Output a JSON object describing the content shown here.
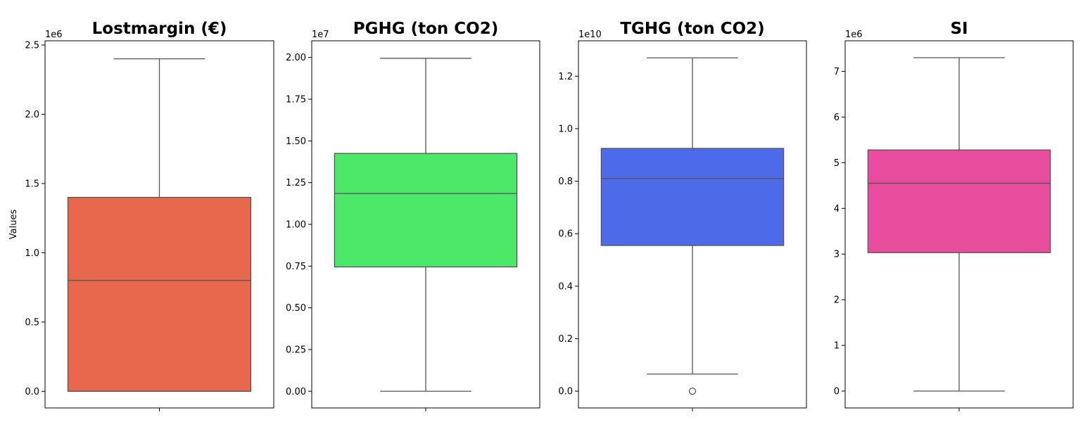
{
  "chart_data": [
    {
      "type": "box",
      "title": "Lostmargin (€)",
      "ylabel": "Values",
      "offset_label": "1e6",
      "color": "#e8684d",
      "ylim": [
        -0.12,
        2.53
      ],
      "ticks": [
        0.0,
        0.5,
        1.0,
        1.5,
        2.0,
        2.5
      ],
      "tick_labels": [
        "0.0",
        "0.5",
        "1.0",
        "1.5",
        "2.0",
        "2.5"
      ],
      "stats": {
        "whislo": 0.0,
        "q1": 0.0,
        "median": 0.8,
        "q3": 1.4,
        "whishi": 2.4
      },
      "outliers": []
    },
    {
      "type": "box",
      "title": "PGHG (ton CO2)",
      "ylabel": "",
      "offset_label": "1e7",
      "color": "#4ce86a",
      "ylim": [
        -0.1,
        2.1
      ],
      "ticks": [
        0.0,
        0.25,
        0.5,
        0.75,
        1.0,
        1.25,
        1.5,
        1.75,
        2.0
      ],
      "tick_labels": [
        "0.00",
        "0.25",
        "0.50",
        "0.75",
        "1.00",
        "1.25",
        "1.50",
        "1.75",
        "2.00"
      ],
      "stats": {
        "whislo": 0.0,
        "q1": 0.745,
        "median": 1.185,
        "q3": 1.425,
        "whishi": 1.995
      },
      "outliers": []
    },
    {
      "type": "box",
      "title": "TGHG (ton CO2)",
      "ylabel": "",
      "offset_label": "1e10",
      "color": "#4d6ae8",
      "ylim": [
        -0.064,
        1.335
      ],
      "ticks": [
        0.0,
        0.2,
        0.4,
        0.6,
        0.8,
        1.0,
        1.2
      ],
      "tick_labels": [
        "0.0",
        "0.2",
        "0.4",
        "0.6",
        "0.8",
        "1.0",
        "1.2"
      ],
      "stats": {
        "whislo": 0.065,
        "q1": 0.555,
        "median": 0.81,
        "q3": 0.925,
        "whishi": 1.27
      },
      "outliers": [
        0.0
      ]
    },
    {
      "type": "box",
      "title": "SI",
      "ylabel": "",
      "offset_label": "1e6",
      "color": "#e84d9d",
      "ylim": [
        -0.37,
        7.67
      ],
      "ticks": [
        0,
        1,
        2,
        3,
        4,
        5,
        6,
        7
      ],
      "tick_labels": [
        "0",
        "1",
        "2",
        "3",
        "4",
        "5",
        "6",
        "7"
      ],
      "stats": {
        "whislo": 0.0,
        "q1": 3.03,
        "median": 4.55,
        "q3": 5.28,
        "whishi": 7.3
      },
      "outliers": []
    }
  ]
}
